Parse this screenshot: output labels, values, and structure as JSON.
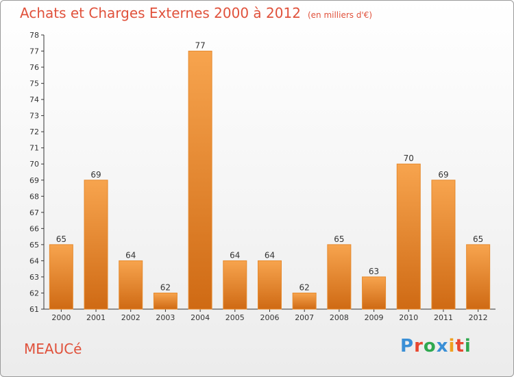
{
  "header": {
    "title": "Achats et Charges Externes 2000 à 2012",
    "subtitle": "(en milliers d'€)"
  },
  "footer": {
    "commune": "MEAUCé",
    "logo": "Proxiti",
    "logo_colors": [
      "#3a8fd6",
      "#e8472f",
      "#2fa84f",
      "#3a8fd6",
      "#f0a020",
      "#e8472f",
      "#2fa84f"
    ]
  },
  "chart_data": {
    "type": "bar",
    "title": "Achats et Charges Externes 2000 à 2012",
    "subtitle": "(en milliers d'€)",
    "categories": [
      "2000",
      "2001",
      "2002",
      "2003",
      "2004",
      "2005",
      "2006",
      "2007",
      "2008",
      "2009",
      "2010",
      "2011",
      "2012"
    ],
    "values": [
      65,
      69,
      64,
      62,
      77,
      64,
      64,
      62,
      65,
      63,
      70,
      69,
      65
    ],
    "ylim": [
      61,
      78
    ],
    "yticks": [
      61,
      62,
      63,
      64,
      65,
      66,
      67,
      68,
      69,
      70,
      71,
      72,
      73,
      74,
      75,
      76,
      77,
      78
    ],
    "grid": false,
    "xlabel": "",
    "ylabel": "",
    "colors": {
      "bar_top": "#f7a44e",
      "bar_bottom": "#cf6a14",
      "bar_edge": "#e68a2e",
      "axis": "#333333",
      "text": "#333333"
    }
  }
}
